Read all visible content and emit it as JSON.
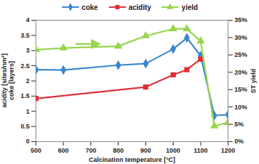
{
  "chart_data": {
    "type": "line",
    "xlabel": "Calcination temperature [°C]",
    "ylabel": "acidity [sites/nm²]\ncoke [layers]",
    "y2label": "ST yield",
    "xlim": [
      500,
      1200
    ],
    "xticks": [
      500,
      600,
      700,
      800,
      900,
      1000,
      1100,
      1200
    ],
    "ylim": [
      0,
      4
    ],
    "yticks": [
      0,
      0.5,
      1,
      1.5,
      2,
      2.5,
      3,
      3.5,
      4
    ],
    "y2lim": [
      0,
      35
    ],
    "y2ticks": [
      {
        "value": 0,
        "label": "0%"
      },
      {
        "value": 5,
        "label": "5%"
      },
      {
        "value": 10,
        "label": "10%"
      },
      {
        "value": 15,
        "label": "15%"
      },
      {
        "value": 20,
        "label": "20%"
      },
      {
        "value": 25,
        "label": "25%"
      },
      {
        "value": 30,
        "label": "30%"
      },
      {
        "value": 35,
        "label": "35%"
      }
    ],
    "grid": false,
    "legend": "top",
    "series": [
      {
        "name": "coke",
        "color": "#3a87d0",
        "marker": "diamond",
        "x": [
          500,
          600,
          800,
          900,
          1000,
          1050,
          1100,
          1150,
          1200
        ],
        "values": [
          2.37,
          2.36,
          2.52,
          2.57,
          3.05,
          3.42,
          2.83,
          0.86,
          0.89
        ]
      },
      {
        "name": "acidity",
        "color": "#e0303a",
        "marker": "square",
        "x": [
          500,
          900,
          1000,
          1050,
          1100
        ],
        "values": [
          1.42,
          1.8,
          2.2,
          2.37,
          2.72
        ]
      },
      {
        "name": "yield",
        "color": "#98d44c",
        "marker": "triangle",
        "axis": "y2",
        "x": [
          500,
          600,
          800,
          900,
          1000,
          1050,
          1100,
          1150,
          1200
        ],
        "values": [
          26.5,
          27,
          27.5,
          30.5,
          32.5,
          32.5,
          29,
          4.5,
          5.5
        ]
      }
    ]
  }
}
